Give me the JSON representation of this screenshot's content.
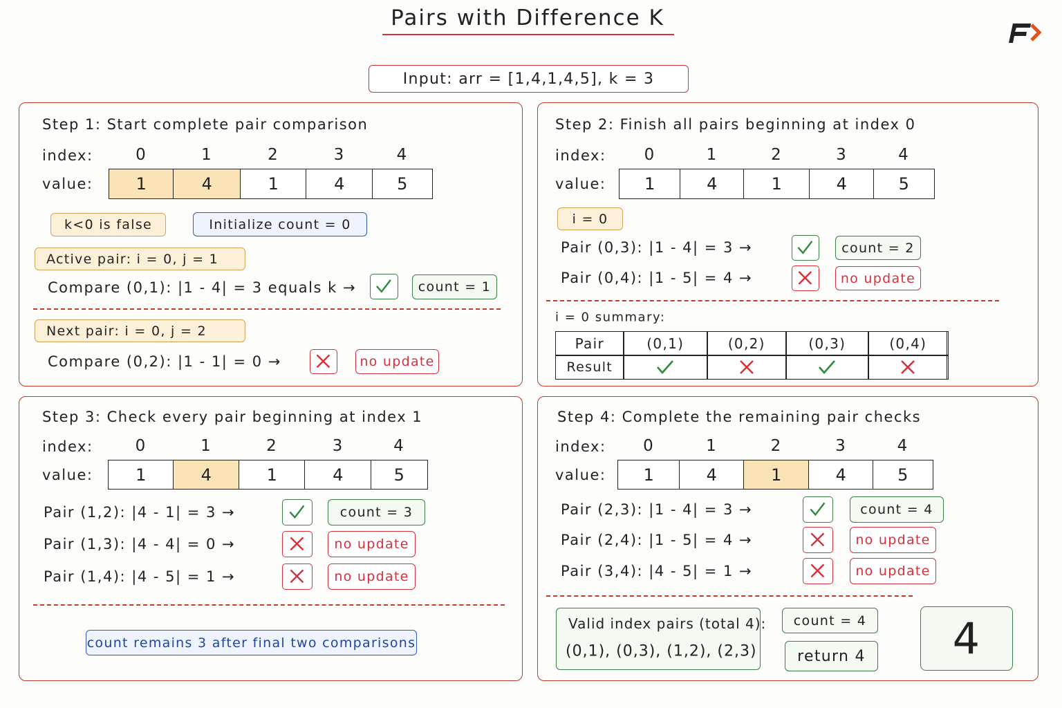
{
  "header": {
    "title": "Pairs with Difference K",
    "input": "Input: arr = [1,4,1,4,5], k = 3"
  },
  "steps": [
    {
      "title": "Step 1: Start complete pair comparison",
      "index_label": "index:",
      "value_label": "value:",
      "indices": [
        0,
        1,
        2,
        3,
        4
      ],
      "values": [
        1,
        4,
        1,
        4,
        5
      ],
      "highlight": [
        0,
        1
      ],
      "condition": "k<0 is false",
      "init": "Initialize count = 0",
      "active_pair": "Active pair: i = 0, j = 1",
      "compare": "Compare (0,1): |1 - 4| = 3 equals k →",
      "compare_result": "count = 1",
      "next_pair": "Next pair: i = 0, j = 2",
      "compare_next": "Compare (0,2): |1 - 1| = 0 →",
      "compare_next_result": "no update"
    },
    {
      "title": "Step 2: Finish all pairs beginning at index 0",
      "index_label": "index:",
      "value_label": "value:",
      "indices": [
        0,
        1,
        2,
        3,
        4
      ],
      "values": [
        1,
        4,
        1,
        4,
        5
      ],
      "highlight": [],
      "loop": "i = 0",
      "rows": [
        {
          "text": "Pair (0,3): |1 - 4| = 3 →",
          "result": "count = 2"
        },
        {
          "text": "Pair (0,4): |1 - 5| = 4 →",
          "result": "no update"
        }
      ],
      "summary": {
        "title": "i = 0 summary:",
        "header": [
          "Pair",
          "(0,1)",
          "(0,2)",
          "(0,3)",
          "(0,4)"
        ],
        "row_label": "Result"
      }
    },
    {
      "title": "Step 3: Check every pair beginning at index 1",
      "index_label": "index:",
      "value_label": "value:",
      "indices": [
        0,
        1,
        2,
        3,
        4
      ],
      "values": [
        1,
        4,
        1,
        4,
        5
      ],
      "highlight": [
        1
      ],
      "rows": [
        {
          "text": "Pair (1,2): |4 - 1| = 3 →",
          "result": "count = 3"
        },
        {
          "text": "Pair (1,3): |4 - 4| = 0 →",
          "result": "no update"
        },
        {
          "text": "Pair (1,4): |4 - 5| = 1 →",
          "result": "no update"
        }
      ],
      "note": "count remains 3 after final two comparisons"
    },
    {
      "title": "Step 4: Complete the remaining pair checks",
      "index_label": "index:",
      "value_label": "value:",
      "indices": [
        0,
        1,
        2,
        3,
        4
      ],
      "values": [
        1,
        4,
        1,
        4,
        5
      ],
      "highlight": [
        2
      ],
      "rows": [
        {
          "text": "Pair (2,3): |1 - 4| = 3 →",
          "result": "count = 4"
        },
        {
          "text": "Pair (2,4): |1 - 5| = 4 →",
          "result": "no update"
        },
        {
          "text": "Pair (3,4): |4 - 5| = 1 →",
          "result": "no update"
        }
      ],
      "valid_title": "Valid index pairs (total 4):",
      "valid_pairs": "(0,1), (0,3), (1,2), (2,3)",
      "final_count": "count = 4",
      "return": "return 4",
      "answer": 4
    }
  ]
}
